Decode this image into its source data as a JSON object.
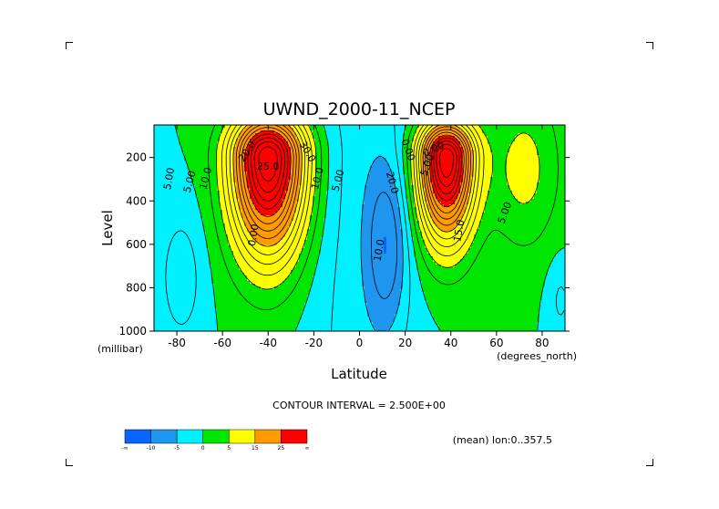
{
  "chart_data": {
    "type": "heatmap",
    "title": "UWND_2000-11_NCEP",
    "xlabel": "Latitude",
    "ylabel": "Level",
    "x_units": "(degrees_north)",
    "y_units": "(millibar)",
    "xlim": [
      -90,
      90
    ],
    "ylim": [
      1000,
      50
    ],
    "y_reversed": true,
    "xticks": [
      -80,
      -60,
      -40,
      -20,
      0,
      20,
      40,
      60,
      80
    ],
    "yticks": [
      200,
      400,
      600,
      800,
      1000
    ],
    "contour_interval_text": "CONTOUR INTERVAL = 2.500E+00",
    "contour_interval": 2.5,
    "subtitle": "(mean) lon:0..357.5",
    "color_levels": [
      -20,
      -10,
      -5,
      0,
      5,
      15,
      25,
      35
    ],
    "colorbar": {
      "labels": [
        "-∞",
        "-10",
        "-5",
        "0",
        "5",
        "15",
        "25",
        "∞"
      ],
      "colors": [
        "#0a64ff",
        "#1e96f0",
        "#00f0ff",
        "#00e600",
        "#ffff00",
        "#ff9b00",
        "#ff0000"
      ]
    },
    "features": [
      {
        "name": "southern jet core",
        "lat": -40,
        "level": 200,
        "max": 37.5
      },
      {
        "name": "northern jet core",
        "lat": 38,
        "level": 200,
        "max": 37.5
      },
      {
        "name": "tropical easterlies",
        "lat": 12,
        "level": 600,
        "min": -7.5
      }
    ],
    "contour_labels": [
      "20.0",
      "25.0",
      "30.0",
      "10.0",
      "5.00",
      "0.00",
      "5.00",
      "10.0",
      "0.00",
      "5.00",
      "15.0",
      "20.0",
      "10.0",
      "5.00",
      "0.00",
      "5.00"
    ],
    "grid": false,
    "legend": "colorbar bottom-left"
  }
}
